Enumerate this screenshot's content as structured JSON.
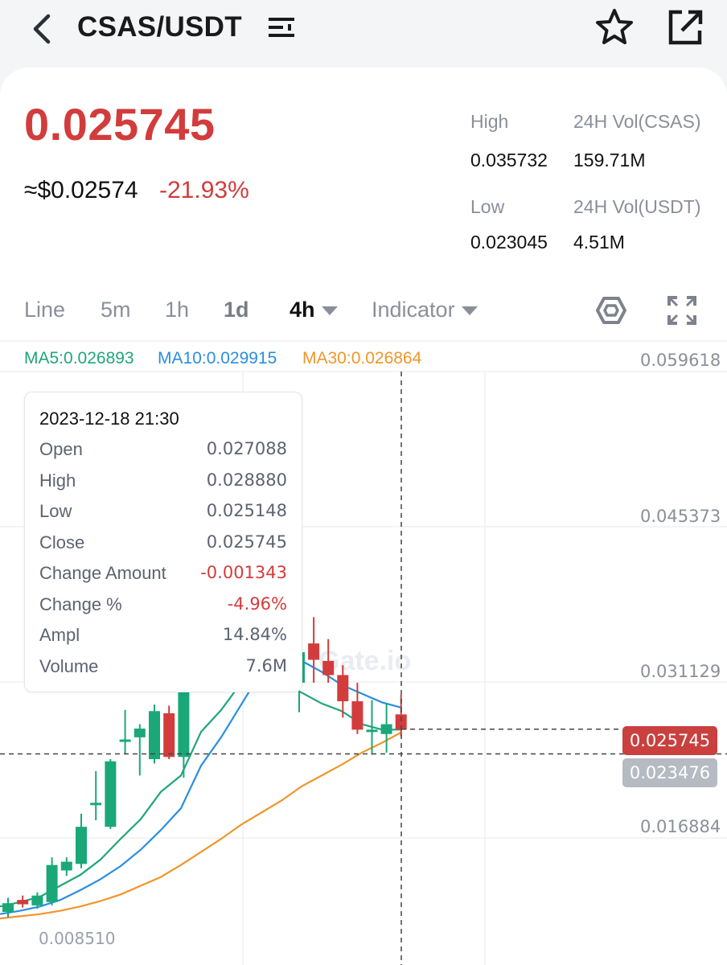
{
  "header": {
    "pair": "CSAS/USDT",
    "icons": {
      "back": "chevron-left-icon",
      "filter": "menu-filter-icon",
      "favorite": "star-outline-icon",
      "share": "external-link-icon"
    }
  },
  "ticker": {
    "last_price": "0.025745",
    "approx_usd": "≈$0.02574",
    "change_percent": "-21.93%",
    "high_label": "High",
    "high": "0.035732",
    "low_label": "Low",
    "low": "0.023045",
    "vol_base_label": "24H Vol(CSAS)",
    "vol_base": "159.71M",
    "vol_quote_label": "24H Vol(USDT)",
    "vol_quote": "4.51M",
    "colors": {
      "down": "#d23c3c",
      "up": "#1aa878"
    }
  },
  "timeframes": {
    "tabs": [
      "Line",
      "5m",
      "1h",
      "1d",
      "4h",
      "Indicator"
    ],
    "selected": "4h",
    "icons": {
      "indicator_settings": "hexagon-settings-icon",
      "fullscreen": "expand-icon"
    }
  },
  "moving_averages": {
    "ma5": "MA5:0.026893",
    "ma10": "MA10:0.029915",
    "ma30": "MA30:0.026864",
    "colors": {
      "ma5": "#1fa67a",
      "ma10": "#2a8ee0",
      "ma30": "#f0962a"
    }
  },
  "price_axis": {
    "labels": [
      "0.059618",
      "0.045373",
      "0.031129",
      "0.016884"
    ],
    "low_marker": "0.008510",
    "current_tag": "0.025745",
    "crosshair_tag": "0.023476"
  },
  "watermark": "Gate.io",
  "tooltip": {
    "datetime": "2023-12-18 21:30",
    "rows": [
      {
        "key": "Open",
        "value": "0.027088"
      },
      {
        "key": "High",
        "value": "0.028880"
      },
      {
        "key": "Low",
        "value": "0.025148"
      },
      {
        "key": "Close",
        "value": "0.025745"
      },
      {
        "key": "Change Amount",
        "value": "-0.001343"
      },
      {
        "key": "Change %",
        "value": "-4.96%"
      },
      {
        "key": "Ampl",
        "value": "14.84%"
      },
      {
        "key": "Volume",
        "value": "7.6M"
      }
    ]
  },
  "chart_data": {
    "type": "candlestick",
    "candles": [
      {
        "o": 0.009,
        "h": 0.0103,
        "l": 0.0085,
        "c": 0.0098
      },
      {
        "o": 0.0101,
        "h": 0.0105,
        "l": 0.0094,
        "c": 0.0097
      },
      {
        "o": 0.0096,
        "h": 0.0108,
        "l": 0.0093,
        "c": 0.0105
      },
      {
        "o": 0.0099,
        "h": 0.014,
        "l": 0.0096,
        "c": 0.0133
      },
      {
        "o": 0.0128,
        "h": 0.014,
        "l": 0.0123,
        "c": 0.0136
      },
      {
        "o": 0.0134,
        "h": 0.018,
        "l": 0.013,
        "c": 0.0168
      },
      {
        "o": 0.019,
        "h": 0.0219,
        "l": 0.0174,
        "c": 0.019
      },
      {
        "o": 0.0168,
        "h": 0.023,
        "l": 0.0166,
        "c": 0.0228
      },
      {
        "o": 0.0248,
        "h": 0.0275,
        "l": 0.0235,
        "c": 0.0248
      },
      {
        "o": 0.025,
        "h": 0.0262,
        "l": 0.0215,
        "c": 0.0258
      },
      {
        "o": 0.023,
        "h": 0.028,
        "l": 0.0226,
        "c": 0.0274
      },
      {
        "o": 0.0272,
        "h": 0.0279,
        "l": 0.023,
        "c": 0.0232
      },
      {
        "o": 0.0232,
        "h": 0.0316,
        "l": 0.0213,
        "c": 0.0316
      }
    ],
    "candles_after_tooltip": [
      {
        "o": 0.03,
        "h": 0.0336,
        "l": 0.0273,
        "c": 0.0328
      },
      {
        "o": 0.0336,
        "h": 0.036,
        "l": 0.03,
        "c": 0.0321
      },
      {
        "o": 0.032,
        "h": 0.034,
        "l": 0.03,
        "c": 0.0307
      },
      {
        "o": 0.0307,
        "h": 0.0316,
        "l": 0.0268,
        "c": 0.0283
      },
      {
        "o": 0.0283,
        "h": 0.03,
        "l": 0.0253,
        "c": 0.0257
      },
      {
        "o": 0.0257,
        "h": 0.0284,
        "l": 0.0234,
        "c": 0.0257
      },
      {
        "o": 0.0253,
        "h": 0.0281,
        "l": 0.0236,
        "c": 0.0262
      },
      {
        "o": 0.0271,
        "h": 0.0289,
        "l": 0.0251,
        "c": 0.0257
      }
    ],
    "ma5_values": [
      0.0095,
      0.0099,
      0.0104,
      0.0114,
      0.0124,
      0.0138,
      0.0157,
      0.0175,
      0.02,
      0.0215,
      0.0255,
      0.0275,
      0.03,
      0.031,
      0.03,
      0.0291,
      0.0281,
      0.0274,
      0.0262,
      0.0257,
      0.0257
    ],
    "ma10_values": [
      0.0088,
      0.0091,
      0.0095,
      0.0101,
      0.011,
      0.012,
      0.0132,
      0.0147,
      0.0165,
      0.0185,
      0.0224,
      0.025,
      0.028,
      0.031,
      0.0326,
      0.032,
      0.031,
      0.0298,
      0.029,
      0.0282,
      0.0277
    ],
    "ma30_values": [
      0.0084,
      0.0086,
      0.0088,
      0.0091,
      0.0095,
      0.01,
      0.0106,
      0.0114,
      0.0122,
      0.0133,
      0.0145,
      0.0157,
      0.017,
      0.0181,
      0.0192,
      0.0205,
      0.0215,
      0.0225,
      0.0236,
      0.0245,
      0.0255
    ],
    "y_axis_labels": [
      "0.059618",
      "0.045373",
      "0.031129",
      "0.016884"
    ],
    "current_price": 0.025745,
    "crosshair_price": 0.023476
  }
}
